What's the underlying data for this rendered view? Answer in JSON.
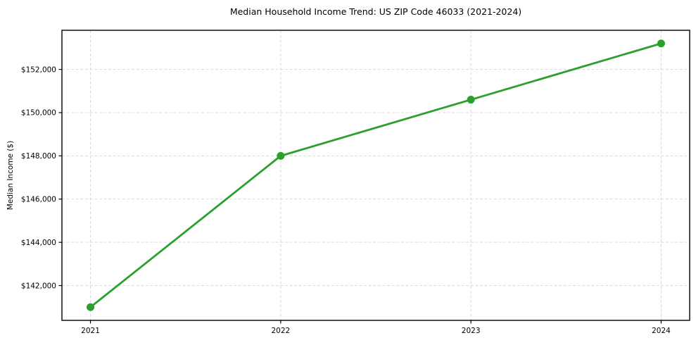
{
  "chart_data": {
    "type": "line",
    "title": "Median Household Income Trend: US ZIP Code 46033 (2021-2024)",
    "xlabel": "",
    "ylabel": "Median Income ($)",
    "x": [
      2021,
      2022,
      2023,
      2024
    ],
    "values": [
      141000,
      148000,
      150600,
      153200
    ],
    "x_tick_labels": [
      "2021",
      "2022",
      "2023",
      "2024"
    ],
    "y_ticks": [
      {
        "value": 142000,
        "label": "$142,000"
      },
      {
        "value": 144000,
        "label": "$144,000"
      },
      {
        "value": 146000,
        "label": "$146,000"
      },
      {
        "value": 148000,
        "label": "$148,000"
      },
      {
        "value": 150000,
        "label": "$150,000"
      },
      {
        "value": 152000,
        "label": "$152,000"
      }
    ],
    "xlim": [
      2020.85,
      2024.15
    ],
    "ylim": [
      140390,
      153810
    ],
    "grid": true,
    "grid_style": "dashed",
    "legend": "none",
    "marker": "circle",
    "colors": {
      "line": "#2ca02c",
      "marker": "#2ca02c",
      "grid": "#d9d9d9",
      "axis": "#000000",
      "text": "#000000",
      "background": "#ffffff"
    }
  }
}
